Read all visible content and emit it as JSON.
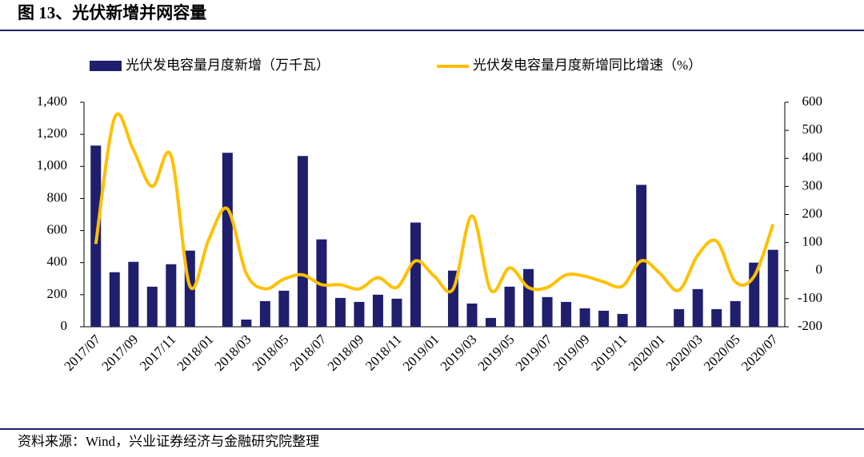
{
  "chart_data": {
    "type": "bar-line",
    "title": "图 13、光伏新增并网容量",
    "source": "资料来源：Wind，兴业证券经济与金融研究院整理",
    "categories": [
      "2017/07",
      null,
      "2017/09",
      null,
      "2017/11",
      null,
      "2018/01",
      null,
      "2018/03",
      null,
      "2018/05",
      null,
      "2018/07",
      null,
      "2018/09",
      null,
      "2018/11",
      null,
      "2019/01",
      null,
      "2019/03",
      null,
      "2019/05",
      null,
      "2019/07",
      null,
      "2019/09",
      null,
      "2019/11",
      null,
      "2020/01",
      null,
      "2020/03",
      null,
      "2020/05",
      null,
      "2020/07"
    ],
    "series": [
      {
        "name": "光伏发电容量月度新增（万千瓦）",
        "type": "bar",
        "color": "#1f1f6e",
        "values": [
          1130,
          340,
          405,
          250,
          390,
          475,
          null,
          1085,
          45,
          160,
          225,
          1065,
          545,
          180,
          155,
          200,
          175,
          650,
          null,
          350,
          145,
          55,
          250,
          360,
          185,
          155,
          115,
          100,
          80,
          885,
          null,
          110,
          235,
          110,
          160,
          400,
          480
        ]
      },
      {
        "name": "光伏发电容量月度新增同比增速（%）",
        "type": "line",
        "axis": "y2",
        "color": "#ffc000",
        "values": [
          95,
          545,
          430,
          300,
          410,
          -55,
          110,
          220,
          -10,
          -65,
          -30,
          -15,
          -50,
          -50,
          -65,
          -25,
          -60,
          35,
          -20,
          -65,
          195,
          -70,
          10,
          -60,
          -60,
          -15,
          -20,
          -40,
          -55,
          35,
          -10,
          -70,
          55,
          105,
          -40,
          -20,
          165
        ]
      }
    ],
    "ylim": [
      0,
      1400
    ],
    "yticks": [
      0,
      200,
      400,
      600,
      800,
      {
        "value": 1000,
        "label": "1,000"
      },
      {
        "value": 1200,
        "label": "1,200"
      },
      {
        "value": 1400,
        "label": "1,400"
      }
    ],
    "y2lim": [
      -200,
      600
    ],
    "y2ticks": [
      -200,
      -100,
      0,
      100,
      200,
      300,
      400,
      500,
      600
    ]
  }
}
